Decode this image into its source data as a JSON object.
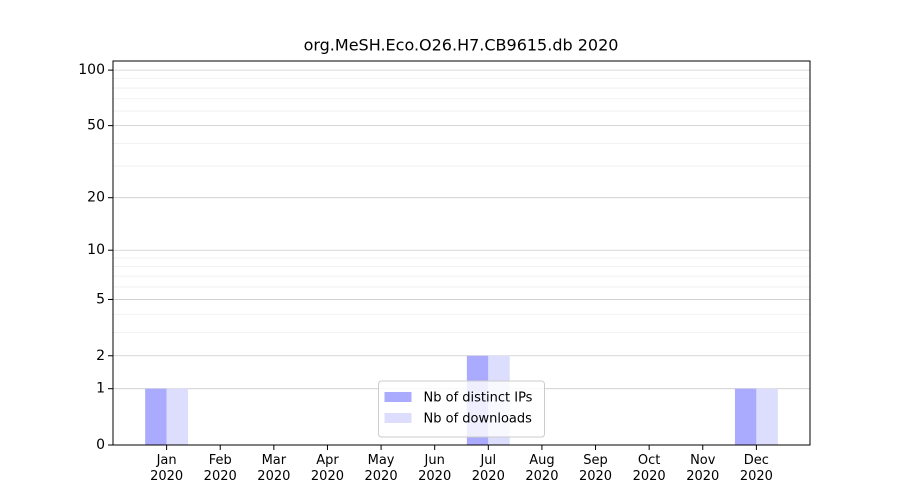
{
  "chart_data": {
    "type": "bar",
    "title": "org.MeSH.Eco.O26.H7.CB9615.db 2020",
    "categories": [
      "Jan\n2020",
      "Feb\n2020",
      "Mar\n2020",
      "Apr\n2020",
      "May\n2020",
      "Jun\n2020",
      "Jul\n2020",
      "Aug\n2020",
      "Sep\n2020",
      "Oct\n2020",
      "Nov\n2020",
      "Dec\n2020"
    ],
    "series": [
      {
        "name": "Nb of distinct IPs",
        "color": "#aaaaff",
        "values": [
          1,
          0,
          0,
          0,
          0,
          0,
          2,
          0,
          0,
          0,
          0,
          1
        ]
      },
      {
        "name": "Nb of downloads",
        "color": "#ddddfd",
        "values": [
          1,
          0,
          0,
          0,
          0,
          0,
          2,
          0,
          0,
          0,
          0,
          1
        ]
      }
    ],
    "yscale": "log1p",
    "ylim": [
      0,
      112
    ],
    "yticks": [
      0,
      1,
      2,
      5,
      10,
      20,
      50,
      100
    ],
    "minor_yticks": [
      3,
      4,
      6,
      7,
      8,
      9,
      30,
      40,
      60,
      70,
      80,
      90
    ],
    "grid": true,
    "legend": "lower center"
  }
}
